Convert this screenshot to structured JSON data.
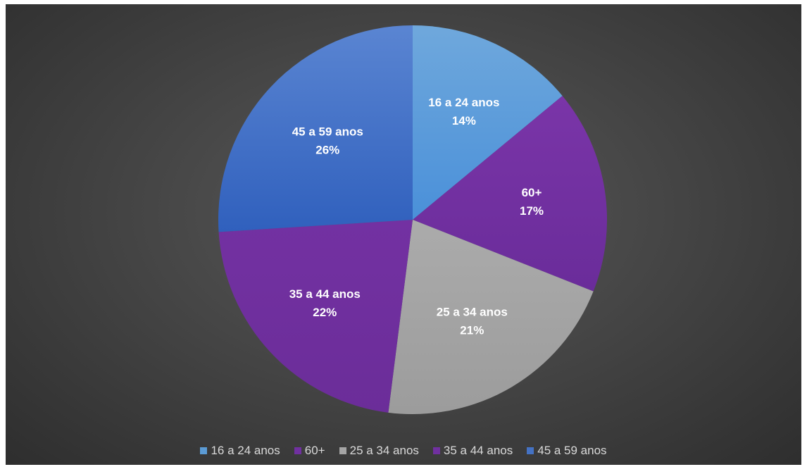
{
  "chart_data": {
    "type": "pie",
    "categories": [
      "16 a 24 anos",
      "60+",
      "25 a 34 anos",
      "35 a 44 anos",
      "45 a 59 anos"
    ],
    "values": [
      14,
      17,
      21,
      22,
      26
    ],
    "percent_labels": [
      "14%",
      "17%",
      "21%",
      "22%",
      "26%"
    ],
    "colors": [
      "#5b9bd5",
      "#7030a0",
      "#a5a5a5",
      "#7030a0",
      "#4472c4"
    ],
    "start_direction": "12 o'clock, clockwise",
    "legend_position": "bottom",
    "data_labels": "category and percentage"
  }
}
